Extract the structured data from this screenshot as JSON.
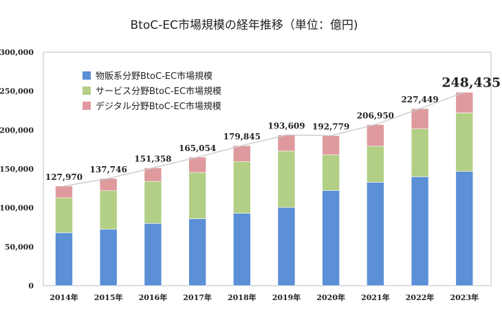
{
  "chart_data": {
    "type": "bar",
    "stacked": true,
    "title": "BtoC-EC市場規模の経年推移（単位：億円)",
    "categories": [
      "2014年",
      "2015年",
      "2016年",
      "2017年",
      "2018年",
      "2019年",
      "2020年",
      "2021年",
      "2022年",
      "2023年"
    ],
    "series": [
      {
        "name": "物販系分野BtoC-EC市場規模",
        "color": "#5b8fd6",
        "values": [
          68000,
          72500,
          80000,
          86000,
          93000,
          100500,
          122333,
          132865,
          139997,
          146760
        ]
      },
      {
        "name": "サービス分野BtoC-EC市場規模",
        "color": "#b2cf85",
        "values": [
          45000,
          49500,
          54000,
          59500,
          66500,
          72500,
          45832,
          46424,
          61477,
          75169
        ]
      },
      {
        "name": "デジタル分野BtoC-EC市場規模",
        "color": "#de9a9d",
        "values": [
          14970,
          15746,
          17358,
          19554,
          20345,
          20609,
          24614,
          27661,
          25975,
          26506
        ]
      }
    ],
    "totals": [
      "127,970",
      "137,746",
      "151,358",
      "165,054",
      "179,845",
      "193,609",
      "192,779",
      "206,950",
      "227,449",
      "248,435"
    ],
    "total_values": [
      127970,
      137746,
      151358,
      165054,
      179845,
      193609,
      192779,
      206950,
      227449,
      248435
    ],
    "ylim": [
      0,
      300000
    ],
    "yticks": [
      "0",
      "50,000",
      "100,000",
      "150,000",
      "200,000",
      "250,000",
      "300,000"
    ],
    "ytick_values": [
      0,
      50000,
      100000,
      150000,
      200000,
      250000,
      300000
    ],
    "trend_line": true,
    "highlight_last_total": true,
    "grid": false,
    "legend_position": "top-left"
  }
}
